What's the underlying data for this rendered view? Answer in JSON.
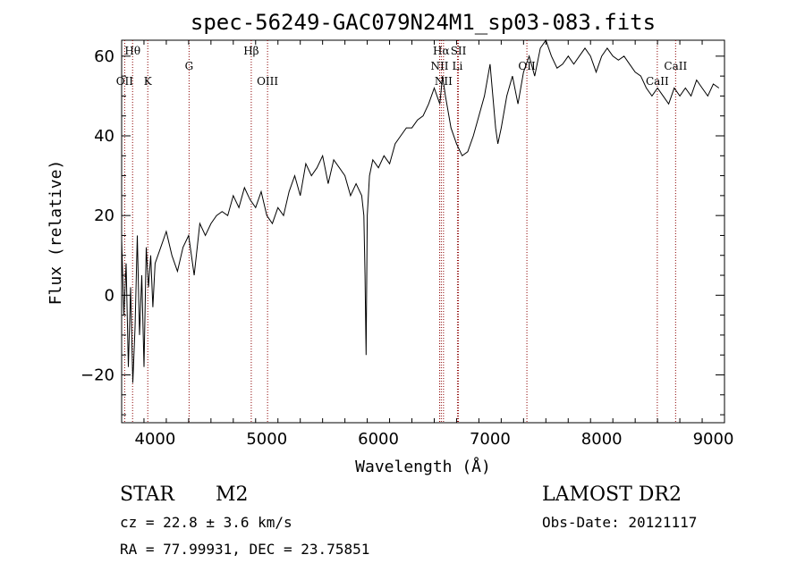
{
  "chart_data": {
    "type": "line",
    "title": "spec-56249-GAC079N24M1_sp03-083.fits",
    "xlabel": "Wavelength (Å)",
    "ylabel": "Flux (relative)",
    "xlim": [
      3700,
      9100
    ],
    "ylim": [
      -32,
      64
    ],
    "xticks": [
      4000,
      5000,
      6000,
      7000,
      8000,
      9000
    ],
    "xtick_labels": [
      "4000",
      "5000",
      "6000",
      "7000",
      "8000",
      "9000"
    ],
    "yticks": [
      -20,
      0,
      20,
      40,
      60
    ],
    "ytick_labels": [
      "−20",
      "0",
      "20",
      "40",
      "60"
    ],
    "grid": false,
    "series": [
      {
        "x": [
          3700,
          3720,
          3740,
          3760,
          3780,
          3800,
          3820,
          3840,
          3860,
          3880,
          3900,
          3920,
          3940,
          3960,
          3980,
          4000,
          4050,
          4100,
          4150,
          4200,
          4250,
          4300,
          4350,
          4400,
          4450,
          4500,
          4550,
          4600,
          4650,
          4700,
          4750,
          4800,
          4850,
          4900,
          4950,
          5000,
          5050,
          5100,
          5150,
          5200,
          5250,
          5300,
          5350,
          5400,
          5450,
          5500,
          5550,
          5600,
          5650,
          5700,
          5750,
          5800,
          5850,
          5870,
          5880,
          5890,
          5900,
          5920,
          5950,
          6000,
          6050,
          6100,
          6150,
          6200,
          6250,
          6300,
          6350,
          6400,
          6450,
          6500,
          6550,
          6575,
          6600,
          6650,
          6700,
          6750,
          6800,
          6850,
          6900,
          6950,
          7000,
          7050,
          7070,
          7100,
          7150,
          7200,
          7250,
          7300,
          7350,
          7400,
          7450,
          7500,
          7550,
          7600,
          7650,
          7700,
          7750,
          7800,
          7850,
          7900,
          7950,
          8000,
          8050,
          8100,
          8150,
          8200,
          8250,
          8300,
          8350,
          8400,
          8450,
          8500,
          8550,
          8600,
          8650,
          8700,
          8750,
          8800,
          8850,
          8900,
          8950,
          9000,
          9050
        ],
        "y": [
          14,
          -5,
          8,
          -18,
          2,
          -22,
          -8,
          15,
          -10,
          5,
          -18,
          12,
          2,
          10,
          -3,
          8,
          12,
          16,
          10,
          6,
          12,
          15,
          5,
          18,
          15,
          18,
          20,
          21,
          20,
          25,
          22,
          27,
          24,
          22,
          26,
          20,
          18,
          22,
          20,
          26,
          30,
          25,
          33,
          30,
          32,
          35,
          28,
          34,
          32,
          30,
          25,
          28,
          25,
          20,
          5,
          -15,
          20,
          30,
          34,
          32,
          35,
          33,
          38,
          40,
          42,
          42,
          44,
          45,
          48,
          52,
          48,
          55,
          50,
          42,
          38,
          35,
          36,
          40,
          45,
          50,
          58,
          42,
          38,
          42,
          50,
          55,
          48,
          56,
          60,
          55,
          62,
          64,
          60,
          57,
          58,
          60,
          58,
          60,
          62,
          60,
          56,
          60,
          62,
          60,
          59,
          60,
          58,
          56,
          55,
          52,
          50,
          52,
          50,
          48,
          52,
          50,
          52,
          50,
          54,
          52,
          50,
          53,
          52
        ],
        "color": "#000000"
      }
    ],
    "reference_lines": {
      "color": "#8b0000",
      "lines": [
        {
          "label": "Hθ",
          "wavelength": 3798,
          "row": "top"
        },
        {
          "label": "OII",
          "wavelength": 3727,
          "row": "bottom"
        },
        {
          "label": "K",
          "wavelength": 3934,
          "row": "bottom"
        },
        {
          "label": "G",
          "wavelength": 4304,
          "row": "middle"
        },
        {
          "label": "Hβ",
          "wavelength": 4861,
          "row": "top"
        },
        {
          "label": "OIII",
          "wavelength": 5007,
          "row": "bottom"
        },
        {
          "label": "Hα",
          "wavelength": 6563,
          "row": "top"
        },
        {
          "label": "SII",
          "wavelength": 6717,
          "row": "top"
        },
        {
          "label": "NII",
          "wavelength": 6548,
          "row": "middle"
        },
        {
          "label": "Li",
          "wavelength": 6708,
          "row": "middle"
        },
        {
          "label": "NII",
          "wavelength": 6583,
          "row": "bottom"
        },
        {
          "label": "OII",
          "wavelength": 7330,
          "row": "middle"
        },
        {
          "label": "CaII",
          "wavelength": 8498,
          "row": "bottom"
        },
        {
          "label": "CaII",
          "wavelength": 8662,
          "row": "middle"
        }
      ]
    }
  },
  "info": {
    "object_class": "STAR",
    "subclass": "M2",
    "survey": "LAMOST DR2",
    "velocity": "cz = 22.8 ± 3.6 km/s",
    "obs_date": "Obs-Date: 20121117",
    "coords": "RA =  77.99931, DEC =  23.75851"
  }
}
